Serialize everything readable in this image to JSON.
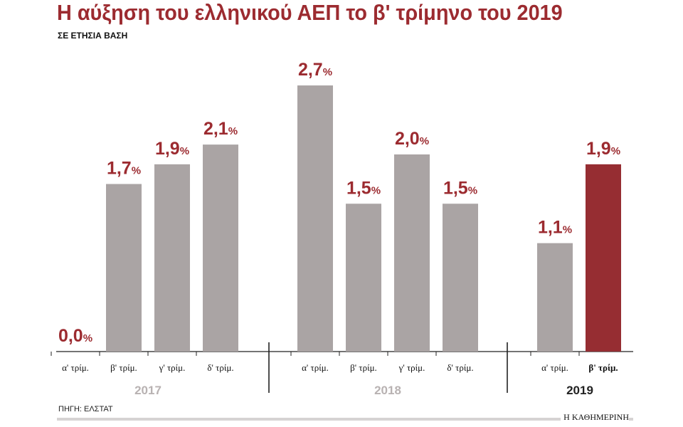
{
  "title": "Η αύξηση του ελληνικού ΑΕΠ το β' τρίμηνο του 2019",
  "subtitle": "ΣΕ ΕΤΗΣΙΑ ΒΑΣΗ",
  "source": "ΠΗΓΗ: ΕΛΣΤΑΤ",
  "brand": "Η ΚΑΘΗΜΕΡΙΝΗ",
  "colors": {
    "bar": "#aaa4a4",
    "highlight": "#962d32",
    "label": "#9c2b30",
    "year_label": "#b8b2b2"
  },
  "chart_data": {
    "type": "bar",
    "title": "Η αύξηση του ελληνικού ΑΕΠ το β' τρίμηνο του 2019",
    "subtitle": "ΣΕ ΕΤΗΣΙΑ ΒΑΣΗ",
    "unit": "%",
    "ylim": [
      0,
      2.7
    ],
    "grid": false,
    "groups": [
      {
        "year": "2017",
        "bars": [
          {
            "label": "α' τρίμ.",
            "value": 0.0,
            "value_text": "0,0"
          },
          {
            "label": "β' τρίμ.",
            "value": 1.7,
            "value_text": "1,7"
          },
          {
            "label": "γ' τρίμ.",
            "value": 1.9,
            "value_text": "1,9"
          },
          {
            "label": "δ' τρίμ.",
            "value": 2.1,
            "value_text": "2,1"
          }
        ]
      },
      {
        "year": "2018",
        "bars": [
          {
            "label": "α' τρίμ.",
            "value": 2.7,
            "value_text": "2,7"
          },
          {
            "label": "β' τρίμ.",
            "value": 1.5,
            "value_text": "1,5"
          },
          {
            "label": "γ' τρίμ.",
            "value": 2.0,
            "value_text": "2,0"
          },
          {
            "label": "δ' τρίμ.",
            "value": 1.5,
            "value_text": "1,5"
          }
        ]
      },
      {
        "year": "2019",
        "highlight": true,
        "bars": [
          {
            "label": "α' τρίμ.",
            "value": 1.1,
            "value_text": "1,1"
          },
          {
            "label": "β' τρίμ.",
            "value": 1.9,
            "value_text": "1,9",
            "highlight": true
          }
        ]
      }
    ]
  }
}
